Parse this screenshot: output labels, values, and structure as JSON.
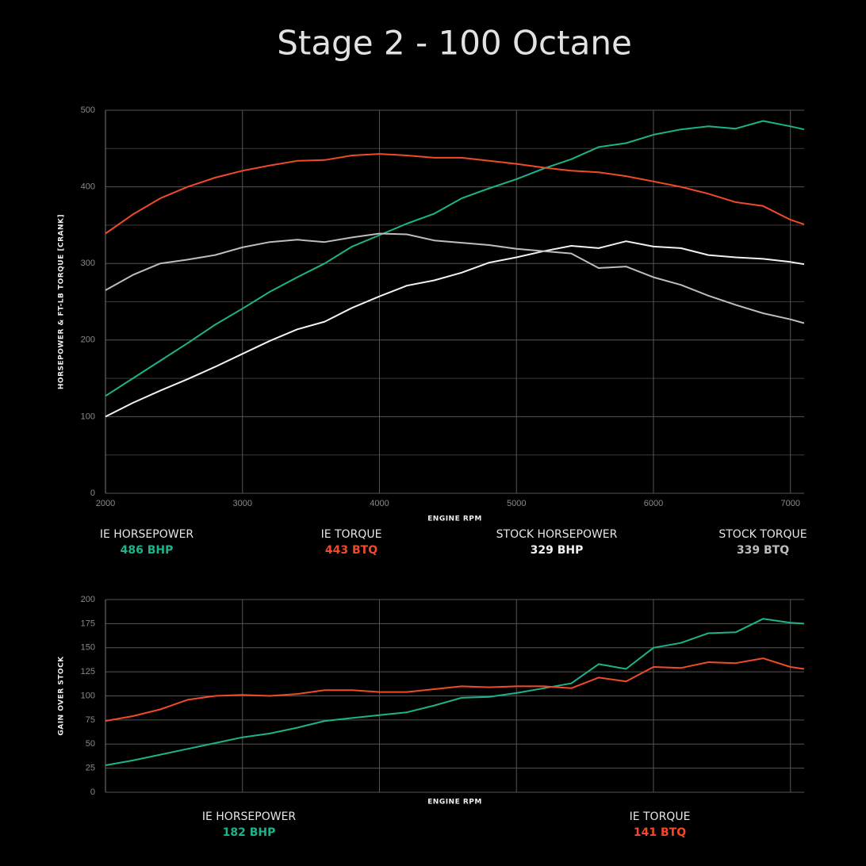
{
  "title": "Stage 2 - 100 Octane",
  "chart_data": [
    {
      "type": "line",
      "ylabel": "HORSEPOWER & FT-LB TORQUE [CRANK]",
      "xlabel": "ENGINE RPM",
      "x": [
        2000,
        2200,
        2400,
        2600,
        2800,
        3000,
        3200,
        3400,
        3600,
        3800,
        4000,
        4200,
        4400,
        4600,
        4800,
        5000,
        5200,
        5400,
        5600,
        5800,
        6000,
        6200,
        6400,
        6600,
        6800,
        7000,
        7100
      ],
      "xlim": [
        2000,
        7100
      ],
      "xticks": [
        2000,
        3000,
        4000,
        5000,
        6000,
        7000
      ],
      "ylim": [
        0,
        500
      ],
      "yticks": [
        0,
        100,
        200,
        300,
        400,
        500
      ],
      "yminor": [
        50,
        150,
        250,
        350,
        450
      ],
      "grid": true,
      "series": [
        {
          "name": "IE HORSEPOWER",
          "peak": "486 BHP",
          "color": "#1db38a",
          "values": [
            127,
            150,
            173,
            196,
            220,
            241,
            263,
            282,
            300,
            322,
            337,
            352,
            365,
            385,
            398,
            410,
            424,
            436,
            452,
            457,
            468,
            475,
            479,
            476,
            486,
            479,
            475
          ]
        },
        {
          "name": "IE TORQUE",
          "peak": "443 BTQ",
          "color": "#f04a2b",
          "values": [
            339,
            364,
            385,
            400,
            412,
            421,
            428,
            434,
            435,
            441,
            443,
            441,
            438,
            438,
            434,
            430,
            425,
            421,
            419,
            414,
            407,
            400,
            391,
            380,
            375,
            357,
            351
          ]
        },
        {
          "name": "STOCK HORSEPOWER",
          "peak": "329 BHP",
          "color": "#f2f2f2",
          "values": [
            100,
            118,
            134,
            149,
            165,
            182,
            199,
            214,
            224,
            242,
            257,
            271,
            278,
            288,
            301,
            308,
            316,
            323,
            320,
            329,
            322,
            320,
            311,
            308,
            306,
            302,
            299
          ]
        },
        {
          "name": "STOCK TORQUE",
          "peak": "339 BTQ",
          "color": "#bdbdbd",
          "values": [
            265,
            285,
            300,
            305,
            311,
            321,
            328,
            331,
            328,
            334,
            339,
            338,
            330,
            327,
            324,
            319,
            316,
            313,
            294,
            296,
            282,
            272,
            258,
            246,
            235,
            227,
            222
          ]
        }
      ]
    },
    {
      "type": "line",
      "ylabel": "GAIN OVER STOCK",
      "xlabel": "ENGINE RPM",
      "x": [
        2000,
        2200,
        2400,
        2600,
        2800,
        3000,
        3200,
        3400,
        3600,
        3800,
        4000,
        4200,
        4400,
        4600,
        4800,
        5000,
        5200,
        5400,
        5600,
        5800,
        6000,
        6200,
        6400,
        6600,
        6800,
        7000,
        7100
      ],
      "xlim": [
        2000,
        7100
      ],
      "xticks": [
        2000,
        3000,
        4000,
        5000,
        6000,
        7000
      ],
      "show_xtick_labels": false,
      "ylim": [
        0,
        200
      ],
      "yticks": [
        0,
        25,
        50,
        75,
        100,
        125,
        150,
        175,
        200
      ],
      "grid": true,
      "series": [
        {
          "name": "IE HORSEPOWER",
          "peak": "182 BHP",
          "color": "#1db38a",
          "values": [
            28,
            33,
            39,
            45,
            51,
            57,
            61,
            67,
            74,
            77,
            80,
            83,
            90,
            98,
            99,
            103,
            108,
            113,
            133,
            128,
            150,
            155,
            165,
            166,
            180,
            176,
            175
          ]
        },
        {
          "name": "IE TORQUE",
          "peak": "141 BTQ",
          "color": "#f04a2b",
          "values": [
            74,
            79,
            86,
            96,
            100,
            101,
            100,
            102,
            106,
            106,
            104,
            104,
            107,
            110,
            109,
            110,
            110,
            108,
            119,
            115,
            130,
            129,
            135,
            134,
            139,
            130,
            128
          ]
        }
      ]
    }
  ]
}
